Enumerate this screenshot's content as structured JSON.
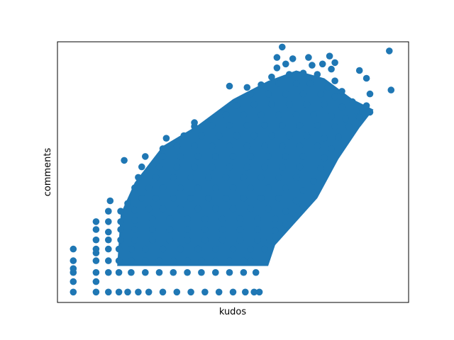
{
  "chart_data": {
    "type": "scatter",
    "title": "",
    "xlabel": "kudos",
    "ylabel": "comments",
    "xlim": [
      0,
      100
    ],
    "ylim": [
      0,
      100
    ],
    "x_ticks_shown": false,
    "y_ticks_shown": false,
    "grid": false,
    "legend": "none",
    "marker_color": "#1f77b4",
    "series": [
      {
        "values_note_free": true,
        "points": [
          [
            4.5,
            4.0
          ],
          [
            11.0,
            4.0
          ],
          [
            14.5,
            4.0
          ],
          [
            17.5,
            4.0
          ],
          [
            20.0,
            4.0
          ],
          [
            23.0,
            4.0
          ],
          [
            26.0,
            4.0
          ],
          [
            30.0,
            4.0
          ],
          [
            34.0,
            4.0
          ],
          [
            38.0,
            4.0
          ],
          [
            42.0,
            4.0
          ],
          [
            46.0,
            4.0
          ],
          [
            50.0,
            4.0
          ],
          [
            53.5,
            4.0
          ],
          [
            56.0,
            4.0
          ],
          [
            57.5,
            4.0
          ],
          [
            4.5,
            11.5
          ],
          [
            11.0,
            11.5
          ],
          [
            14.5,
            11.5
          ],
          [
            17.5,
            11.5
          ],
          [
            21.0,
            11.5
          ],
          [
            25.0,
            11.5
          ],
          [
            29.0,
            11.5
          ],
          [
            33.0,
            11.5
          ],
          [
            37.0,
            11.5
          ],
          [
            41.0,
            11.5
          ],
          [
            45.0,
            11.5
          ],
          [
            49.0,
            11.5
          ],
          [
            53.0,
            11.5
          ],
          [
            56.5,
            11.5
          ],
          [
            4.5,
            16.0
          ],
          [
            11.0,
            16.0
          ],
          [
            14.5,
            16.0
          ],
          [
            17.5,
            16.0
          ],
          [
            21.0,
            16.0
          ],
          [
            25.0,
            16.0
          ],
          [
            29.0,
            16.0
          ],
          [
            33.0,
            16.0
          ],
          [
            37.0,
            16.0
          ],
          [
            41.0,
            16.0
          ],
          [
            45.0,
            16.0
          ],
          [
            49.0,
            16.0
          ],
          [
            53.0,
            16.0
          ],
          [
            55.0,
            16.0
          ],
          [
            4.5,
            20.5
          ],
          [
            11.0,
            20.5
          ],
          [
            14.5,
            20.5
          ],
          [
            17.5,
            20.5
          ],
          [
            21.0,
            20.5
          ],
          [
            25.0,
            20.5
          ],
          [
            30.0,
            20.5
          ],
          [
            35.0,
            20.5
          ],
          [
            40.0,
            20.5
          ],
          [
            45.0,
            20.5
          ],
          [
            50.0,
            20.5
          ],
          [
            55.0,
            20.5
          ],
          [
            59.0,
            20.5
          ],
          [
            11.0,
            24.0
          ],
          [
            14.5,
            24.0
          ],
          [
            18.0,
            24.0
          ],
          [
            22.0,
            24.0
          ],
          [
            27.0,
            24.0
          ],
          [
            32.0,
            24.0
          ],
          [
            37.0,
            24.0
          ],
          [
            42.0,
            24.0
          ],
          [
            47.0,
            24.0
          ],
          [
            52.0,
            24.0
          ],
          [
            57.0,
            24.0
          ],
          [
            60.5,
            24.0
          ],
          [
            11.0,
            28.0
          ],
          [
            14.5,
            27.0
          ],
          [
            18.0,
            28.0
          ],
          [
            22.0,
            28.0
          ],
          [
            27.0,
            28.0
          ],
          [
            32.0,
            28.0
          ],
          [
            37.0,
            28.0
          ],
          [
            42.0,
            28.0
          ],
          [
            47.0,
            28.0
          ],
          [
            52.0,
            28.0
          ],
          [
            57.0,
            28.0
          ],
          [
            62.0,
            27.5
          ],
          [
            11.0,
            31.0
          ],
          [
            14.5,
            31.0
          ],
          [
            18.0,
            31.0
          ],
          [
            22.0,
            31.5
          ],
          [
            27.0,
            32.0
          ],
          [
            32.0,
            32.0
          ],
          [
            37.0,
            32.0
          ],
          [
            42.0,
            32.0
          ],
          [
            47.0,
            32.0
          ],
          [
            52.0,
            32.0
          ],
          [
            57.0,
            32.0
          ],
          [
            62.0,
            32.0
          ],
          [
            65.0,
            30.0
          ],
          [
            14.5,
            35.0
          ],
          [
            18.0,
            35.0
          ],
          [
            22.0,
            35.5
          ],
          [
            26.0,
            36.0
          ],
          [
            30.0,
            36.0
          ],
          [
            35.0,
            36.0
          ],
          [
            40.0,
            36.0
          ],
          [
            45.0,
            36.0
          ],
          [
            50.0,
            36.0
          ],
          [
            55.0,
            36.0
          ],
          [
            60.0,
            36.0
          ],
          [
            65.0,
            35.0
          ],
          [
            68.0,
            33.0
          ],
          [
            15.0,
            39.0
          ],
          [
            20.0,
            38.0
          ],
          [
            24.0,
            40.0
          ],
          [
            28.0,
            40.0
          ],
          [
            33.0,
            40.0
          ],
          [
            38.0,
            40.0
          ],
          [
            43.0,
            40.0
          ],
          [
            48.0,
            40.0
          ],
          [
            53.0,
            40.0
          ],
          [
            58.0,
            40.0
          ],
          [
            63.0,
            40.0
          ],
          [
            68.0,
            39.0
          ],
          [
            70.0,
            37.0
          ],
          [
            22.0,
            44.0
          ],
          [
            26.0,
            44.0
          ],
          [
            30.0,
            44.0
          ],
          [
            35.0,
            44.0
          ],
          [
            40.0,
            44.0
          ],
          [
            45.0,
            44.0
          ],
          [
            50.0,
            44.0
          ],
          [
            55.0,
            44.0
          ],
          [
            60.0,
            44.0
          ],
          [
            65.0,
            44.0
          ],
          [
            70.0,
            43.0
          ],
          [
            73.0,
            42.0
          ],
          [
            23.0,
            48.0
          ],
          [
            28.0,
            48.0
          ],
          [
            33.0,
            48.0
          ],
          [
            38.0,
            48.0
          ],
          [
            43.0,
            48.0
          ],
          [
            48.0,
            48.0
          ],
          [
            53.0,
            48.0
          ],
          [
            58.0,
            48.0
          ],
          [
            63.0,
            48.0
          ],
          [
            68.0,
            48.0
          ],
          [
            73.0,
            46.5
          ],
          [
            24.0,
            52.0
          ],
          [
            29.0,
            52.0
          ],
          [
            34.0,
            52.0
          ],
          [
            39.0,
            52.0
          ],
          [
            44.0,
            52.0
          ],
          [
            49.0,
            52.0
          ],
          [
            54.0,
            52.0
          ],
          [
            59.0,
            52.0
          ],
          [
            64.0,
            52.0
          ],
          [
            69.0,
            52.0
          ],
          [
            75.0,
            51.5
          ],
          [
            19.0,
            54.5
          ],
          [
            25.0,
            56.0
          ],
          [
            30.0,
            56.0
          ],
          [
            35.0,
            56.0
          ],
          [
            40.0,
            56.0
          ],
          [
            45.0,
            56.0
          ],
          [
            50.0,
            56.0
          ],
          [
            55.0,
            56.0
          ],
          [
            60.0,
            56.0
          ],
          [
            65.0,
            56.0
          ],
          [
            70.0,
            56.0
          ],
          [
            76.0,
            55.5
          ],
          [
            30.0,
            59.0
          ],
          [
            34.0,
            60.0
          ],
          [
            39.0,
            60.0
          ],
          [
            44.0,
            60.0
          ],
          [
            49.0,
            60.0
          ],
          [
            54.0,
            60.0
          ],
          [
            59.0,
            60.0
          ],
          [
            64.0,
            60.0
          ],
          [
            69.0,
            60.0
          ],
          [
            74.0,
            60.0
          ],
          [
            78.0,
            59.0
          ],
          [
            31.0,
            63.0
          ],
          [
            36.0,
            64.0
          ],
          [
            41.0,
            64.0
          ],
          [
            46.0,
            64.0
          ],
          [
            51.0,
            64.0
          ],
          [
            56.0,
            64.0
          ],
          [
            61.0,
            64.0
          ],
          [
            66.0,
            64.0
          ],
          [
            71.0,
            64.0
          ],
          [
            76.0,
            63.0
          ],
          [
            80.0,
            63.5
          ],
          [
            39.0,
            67.5
          ],
          [
            44.0,
            68.0
          ],
          [
            49.0,
            68.0
          ],
          [
            54.0,
            68.0
          ],
          [
            59.0,
            68.0
          ],
          [
            64.0,
            68.0
          ],
          [
            69.0,
            68.0
          ],
          [
            74.0,
            68.0
          ],
          [
            79.0,
            67.5
          ],
          [
            83.0,
            67.5
          ],
          [
            39.0,
            69.0
          ],
          [
            48.0,
            72.0
          ],
          [
            53.0,
            72.0
          ],
          [
            58.0,
            72.0
          ],
          [
            63.0,
            72.0
          ],
          [
            68.0,
            72.0
          ],
          [
            73.0,
            72.0
          ],
          [
            78.0,
            71.5
          ],
          [
            82.0,
            70.5
          ],
          [
            86.0,
            71.0
          ],
          [
            51.0,
            75.5
          ],
          [
            56.0,
            76.0
          ],
          [
            61.0,
            76.0
          ],
          [
            66.0,
            76.0
          ],
          [
            71.0,
            76.0
          ],
          [
            76.0,
            76.0
          ],
          [
            81.0,
            75.0
          ],
          [
            85.0,
            73.5
          ],
          [
            89.0,
            73.0
          ],
          [
            55.0,
            80.0
          ],
          [
            60.0,
            80.0
          ],
          [
            65.0,
            80.0
          ],
          [
            70.0,
            80.0
          ],
          [
            75.0,
            80.0
          ],
          [
            79.0,
            79.0
          ],
          [
            84.0,
            77.0
          ],
          [
            88.0,
            75.5
          ],
          [
            49.0,
            83.0
          ],
          [
            54.0,
            82.5
          ],
          [
            58.0,
            83.5
          ],
          [
            63.0,
            84.0
          ],
          [
            68.0,
            84.0
          ],
          [
            72.0,
            84.0
          ],
          [
            77.0,
            82.5
          ],
          [
            81.0,
            81.0
          ],
          [
            61.0,
            86.5
          ],
          [
            66.0,
            87.5
          ],
          [
            70.0,
            88.0
          ],
          [
            74.0,
            87.5
          ],
          [
            79.0,
            85.0
          ],
          [
            95.0,
            81.5
          ],
          [
            89.0,
            80.0
          ],
          [
            62.5,
            90.0
          ],
          [
            65.0,
            91.5
          ],
          [
            72.5,
            91.0
          ],
          [
            75.5,
            91.5
          ],
          [
            78.0,
            89.5
          ],
          [
            88.0,
            86.0
          ],
          [
            62.5,
            94.0
          ],
          [
            67.0,
            93.5
          ],
          [
            71.5,
            94.0
          ],
          [
            77.5,
            94.5
          ],
          [
            86.0,
            89.0
          ],
          [
            64.0,
            98.0
          ],
          [
            79.0,
            92.0
          ],
          [
            94.5,
            96.5
          ],
          [
            4.5,
            8.0
          ],
          [
            4.5,
            13.0
          ],
          [
            11.0,
            8.0
          ],
          [
            11.0,
            19.0
          ]
        ]
      }
    ]
  }
}
